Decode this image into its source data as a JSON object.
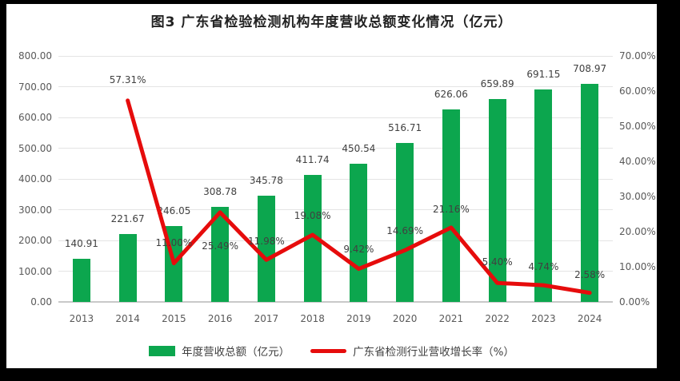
{
  "title": "图3 广东省检验检测机构年度营收总额变化情况（亿元）",
  "colors": {
    "bar": "#0ca64e",
    "line": "#e60c0c",
    "grid": "#e4e4e4",
    "axis_text": "#595959",
    "label_text": "#404040",
    "background": "#ffffff",
    "outer_border": "#000000"
  },
  "legend": [
    {
      "label": "年度营收总额（亿元）",
      "type": "bar",
      "color": "#0ca64e"
    },
    {
      "label": "广东省检测行业营收增长率（%）",
      "type": "line",
      "color": "#e60c0c"
    }
  ],
  "chart_data": {
    "type": "bar+line combo",
    "title": "图3 广东省检验检测机构年度营收总额变化情况（亿元）",
    "categories": [
      "2013",
      "2014",
      "2015",
      "2016",
      "2017",
      "2018",
      "2019",
      "2020",
      "2021",
      "2022",
      "2023",
      "2024"
    ],
    "series": [
      {
        "name": "年度营收总额（亿元）",
        "type": "bar",
        "axis": "left",
        "color": "#0ca64e",
        "values": [
          140.91,
          221.67,
          246.05,
          308.78,
          345.78,
          411.74,
          450.54,
          516.71,
          626.06,
          659.89,
          691.15,
          708.97
        ]
      },
      {
        "name": "广东省检测行业营收增长率（%）",
        "type": "line",
        "axis": "right",
        "color": "#e60c0c",
        "values": [
          null,
          57.31,
          11.0,
          25.49,
          11.98,
          19.08,
          9.42,
          14.69,
          21.16,
          5.4,
          4.74,
          2.58
        ]
      }
    ],
    "bar_labels": [
      "140.91",
      "221.67",
      "246.05",
      "308.78",
      "345.78",
      "411.74",
      "450.54",
      "516.71",
      "626.06",
      "659.89",
      "691.15",
      "708.97"
    ],
    "line_labels": [
      null,
      "57.31%",
      "11.00%",
      "25.49%",
      "11.98%",
      "19.08%",
      "9.42%",
      "14.69%",
      "21.16%",
      "5.40%",
      "4.74%",
      "2.58%"
    ],
    "line_label_dy": [
      null,
      -26,
      -26,
      42,
      -23,
      -24,
      -25,
      -24,
      -23,
      -26,
      -23,
      -23
    ],
    "left_axis": {
      "min": 0,
      "max": 800,
      "step": 100,
      "tick_labels": [
        "0.00",
        "100.00",
        "200.00",
        "300.00",
        "400.00",
        "500.00",
        "600.00",
        "700.00",
        "800.00"
      ]
    },
    "right_axis": {
      "min": 0,
      "max": 70,
      "step": 10,
      "tick_labels": [
        "0.00%",
        "10.00%",
        "20.00%",
        "30.00%",
        "40.00%",
        "50.00%",
        "60.00%",
        "70.00%"
      ]
    },
    "grid": true,
    "legend_position": "bottom"
  }
}
